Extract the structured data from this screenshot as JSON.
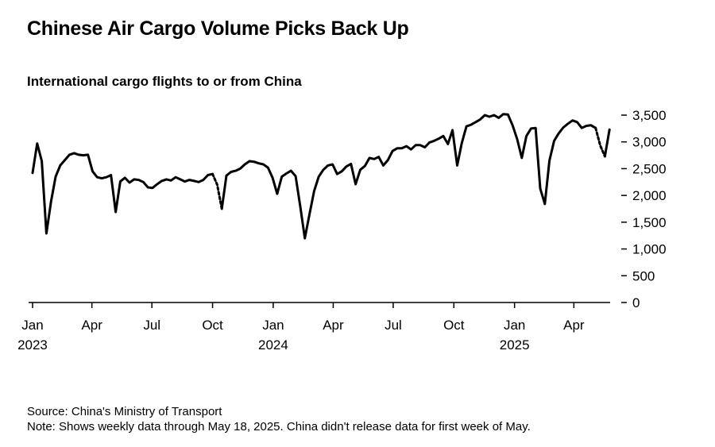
{
  "title": "Chinese Air Cargo Volume Picks Back Up",
  "subtitle": "International cargo flights to or from China",
  "source": "Source: China's Ministry of Transport",
  "note": "Note: Shows weekly data through May 18, 2025. China didn't release data for first week of May.",
  "colors": {
    "line": "#000000",
    "axis": "#000000",
    "background": "#ffffff"
  },
  "chart_data": {
    "type": "line",
    "title": "Chinese Air Cargo Volume Picks Back Up",
    "subtitle": "International cargo flights to or from China",
    "xlabel": "",
    "ylabel": "",
    "ylim": [
      0,
      3500
    ],
    "xlim": [
      "2022-12-26",
      "2025-05-26"
    ],
    "yticks": [
      0,
      500,
      1000,
      1500,
      2000,
      2500,
      3000,
      3500
    ],
    "ytick_labels": [
      "0",
      "500",
      "1,000",
      "1,500",
      "2,000",
      "2,500",
      "3,000",
      "3,500"
    ],
    "yaxis_position": "right",
    "grid": false,
    "legend": "none",
    "xticks": [
      {
        "date": "2023-01-01",
        "label": "Jan",
        "year": "2023"
      },
      {
        "date": "2023-04-01",
        "label": "Apr",
        "year": ""
      },
      {
        "date": "2023-07-01",
        "label": "Jul",
        "year": ""
      },
      {
        "date": "2023-10-01",
        "label": "Oct",
        "year": ""
      },
      {
        "date": "2024-01-01",
        "label": "Jan",
        "year": "2024"
      },
      {
        "date": "2024-04-01",
        "label": "Apr",
        "year": ""
      },
      {
        "date": "2024-07-01",
        "label": "Jul",
        "year": ""
      },
      {
        "date": "2024-10-01",
        "label": "Oct",
        "year": ""
      },
      {
        "date": "2025-01-01",
        "label": "Jan",
        "year": "2025"
      },
      {
        "date": "2025-04-01",
        "label": "Apr",
        "year": ""
      }
    ],
    "series": [
      {
        "style": "solid",
        "points": [
          [
            "2023-01-01",
            2420
          ],
          [
            "2023-01-08",
            2970
          ],
          [
            "2023-01-15",
            2640
          ],
          [
            "2023-01-22",
            1290
          ],
          [
            "2023-01-29",
            1880
          ],
          [
            "2023-02-05",
            2350
          ],
          [
            "2023-02-12",
            2560
          ],
          [
            "2023-02-19",
            2660
          ],
          [
            "2023-02-26",
            2760
          ],
          [
            "2023-03-05",
            2790
          ],
          [
            "2023-03-12",
            2760
          ],
          [
            "2023-03-19",
            2750
          ],
          [
            "2023-03-26",
            2760
          ],
          [
            "2023-04-02",
            2450
          ],
          [
            "2023-04-09",
            2340
          ],
          [
            "2023-04-16",
            2320
          ],
          [
            "2023-04-23",
            2340
          ],
          [
            "2023-04-30",
            2380
          ],
          [
            "2023-05-07",
            1690
          ],
          [
            "2023-05-14",
            2260
          ],
          [
            "2023-05-21",
            2330
          ],
          [
            "2023-05-28",
            2240
          ],
          [
            "2023-06-04",
            2300
          ],
          [
            "2023-06-11",
            2290
          ],
          [
            "2023-06-18",
            2250
          ],
          [
            "2023-06-25",
            2150
          ],
          [
            "2023-07-02",
            2140
          ],
          [
            "2023-07-09",
            2210
          ],
          [
            "2023-07-16",
            2270
          ],
          [
            "2023-07-23",
            2300
          ],
          [
            "2023-07-30",
            2280
          ],
          [
            "2023-08-06",
            2340
          ],
          [
            "2023-08-13",
            2300
          ],
          [
            "2023-08-20",
            2260
          ],
          [
            "2023-08-27",
            2290
          ],
          [
            "2023-09-03",
            2270
          ],
          [
            "2023-09-10",
            2250
          ],
          [
            "2023-09-17",
            2290
          ],
          [
            "2023-09-24",
            2380
          ],
          [
            "2023-10-01",
            2400
          ]
        ]
      },
      {
        "style": "dashed",
        "points": [
          [
            "2023-10-01",
            2400
          ],
          [
            "2023-10-08",
            2200
          ],
          [
            "2023-10-15",
            1750
          ]
        ]
      },
      {
        "style": "solid",
        "points": [
          [
            "2023-10-15",
            1750
          ],
          [
            "2023-10-22",
            2370
          ],
          [
            "2023-10-29",
            2440
          ],
          [
            "2023-11-05",
            2460
          ],
          [
            "2023-11-12",
            2500
          ],
          [
            "2023-11-19",
            2580
          ],
          [
            "2023-11-26",
            2640
          ],
          [
            "2023-12-03",
            2630
          ],
          [
            "2023-12-10",
            2600
          ],
          [
            "2023-12-17",
            2580
          ],
          [
            "2023-12-24",
            2520
          ],
          [
            "2023-12-31",
            2330
          ],
          [
            "2024-01-07",
            2030
          ],
          [
            "2024-01-14",
            2350
          ],
          [
            "2024-01-21",
            2410
          ],
          [
            "2024-01-28",
            2460
          ],
          [
            "2024-02-04",
            2360
          ],
          [
            "2024-02-11",
            1800
          ],
          [
            "2024-02-18",
            1200
          ],
          [
            "2024-02-25",
            1650
          ],
          [
            "2024-03-03",
            2080
          ],
          [
            "2024-03-10",
            2350
          ],
          [
            "2024-03-17",
            2480
          ],
          [
            "2024-03-24",
            2560
          ],
          [
            "2024-03-31",
            2580
          ],
          [
            "2024-04-07",
            2400
          ],
          [
            "2024-04-14",
            2450
          ],
          [
            "2024-04-21",
            2540
          ],
          [
            "2024-04-28",
            2590
          ],
          [
            "2024-05-05",
            2210
          ],
          [
            "2024-05-12",
            2480
          ],
          [
            "2024-05-19",
            2550
          ],
          [
            "2024-05-26",
            2700
          ],
          [
            "2024-06-02",
            2680
          ],
          [
            "2024-06-09",
            2720
          ],
          [
            "2024-06-16",
            2560
          ],
          [
            "2024-06-23",
            2660
          ],
          [
            "2024-06-30",
            2830
          ],
          [
            "2024-07-07",
            2880
          ],
          [
            "2024-07-14",
            2880
          ],
          [
            "2024-07-21",
            2920
          ],
          [
            "2024-07-28",
            2860
          ],
          [
            "2024-08-04",
            2940
          ],
          [
            "2024-08-11",
            2940
          ],
          [
            "2024-08-18",
            2900
          ],
          [
            "2024-08-25",
            2990
          ],
          [
            "2024-09-01",
            3020
          ],
          [
            "2024-09-08",
            3060
          ],
          [
            "2024-09-15",
            3110
          ],
          [
            "2024-09-22",
            2960
          ],
          [
            "2024-09-29",
            3220
          ],
          [
            "2024-10-06",
            2560
          ],
          [
            "2024-10-13",
            2980
          ],
          [
            "2024-10-20",
            3290
          ],
          [
            "2024-10-27",
            3320
          ],
          [
            "2024-11-03",
            3370
          ],
          [
            "2024-11-10",
            3420
          ],
          [
            "2024-11-17",
            3500
          ],
          [
            "2024-11-24",
            3470
          ],
          [
            "2024-12-01",
            3500
          ],
          [
            "2024-12-08",
            3450
          ],
          [
            "2024-12-15",
            3520
          ],
          [
            "2024-12-22",
            3510
          ],
          [
            "2024-12-29",
            3310
          ],
          [
            "2025-01-05",
            3050
          ],
          [
            "2025-01-12",
            2700
          ],
          [
            "2025-01-19",
            3110
          ],
          [
            "2025-01-26",
            3250
          ],
          [
            "2025-02-02",
            3260
          ],
          [
            "2025-02-09",
            2130
          ],
          [
            "2025-02-16",
            1840
          ],
          [
            "2025-02-23",
            2650
          ],
          [
            "2025-03-02",
            3020
          ],
          [
            "2025-03-09",
            3160
          ],
          [
            "2025-03-16",
            3270
          ],
          [
            "2025-03-23",
            3340
          ],
          [
            "2025-03-30",
            3400
          ],
          [
            "2025-04-06",
            3370
          ],
          [
            "2025-04-13",
            3260
          ],
          [
            "2025-04-20",
            3300
          ],
          [
            "2025-04-27",
            3310
          ],
          [
            "2025-05-04",
            3260
          ]
        ]
      },
      {
        "style": "dashed",
        "points": [
          [
            "2025-05-04",
            3260
          ],
          [
            "2025-05-11",
            2930
          ],
          [
            "2025-05-18",
            2730
          ]
        ]
      },
      {
        "style": "solid",
        "points": [
          [
            "2025-05-18",
            2730
          ],
          [
            "2025-05-25",
            3230
          ]
        ]
      }
    ]
  }
}
